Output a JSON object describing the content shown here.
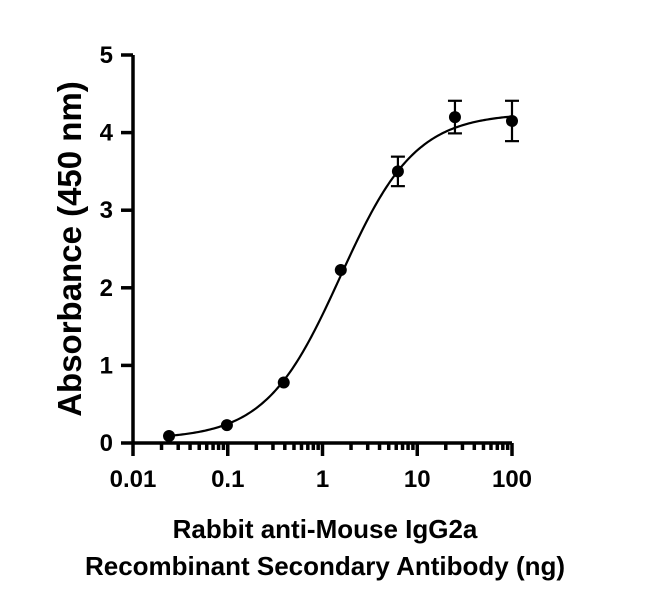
{
  "chart_data": {
    "type": "scatter",
    "xscale": "log",
    "xlim": [
      0.01,
      100
    ],
    "ylim": [
      0,
      5
    ],
    "x_ticks": [
      {
        "value": 0.01,
        "label": "0.01"
      },
      {
        "value": 0.1,
        "label": "0.1"
      },
      {
        "value": 1,
        "label": "1"
      },
      {
        "value": 10,
        "label": "10"
      },
      {
        "value": 100,
        "label": "100"
      }
    ],
    "y_ticks": [
      {
        "value": 0,
        "label": "0"
      },
      {
        "value": 1,
        "label": "1"
      },
      {
        "value": 2,
        "label": "2"
      },
      {
        "value": 3,
        "label": "3"
      },
      {
        "value": 4,
        "label": "4"
      },
      {
        "value": 5,
        "label": "5"
      }
    ],
    "ylabel": "Absorbance (450 nm)",
    "xlabel_line1": "Rabbit anti-Mouse IgG2a",
    "xlabel_line2": "Recombinant Secondary Antibody (ng)",
    "grid": false,
    "points": [
      {
        "x": 0.024,
        "y": 0.09,
        "err": 0
      },
      {
        "x": 0.098,
        "y": 0.23,
        "err": 0
      },
      {
        "x": 0.39,
        "y": 0.78,
        "err": 0
      },
      {
        "x": 1.56,
        "y": 2.23,
        "err": 0
      },
      {
        "x": 6.25,
        "y": 3.5,
        "err": 0.19
      },
      {
        "x": 25,
        "y": 4.2,
        "err": 0.21
      },
      {
        "x": 100,
        "y": 4.15,
        "err": 0.26
      }
    ],
    "fit_curve": {
      "model": "4PL",
      "bottom": 0.05,
      "top": 4.25,
      "ec50": 1.55,
      "hill": 1.1,
      "x_from": 0.024,
      "x_to": 100
    }
  }
}
